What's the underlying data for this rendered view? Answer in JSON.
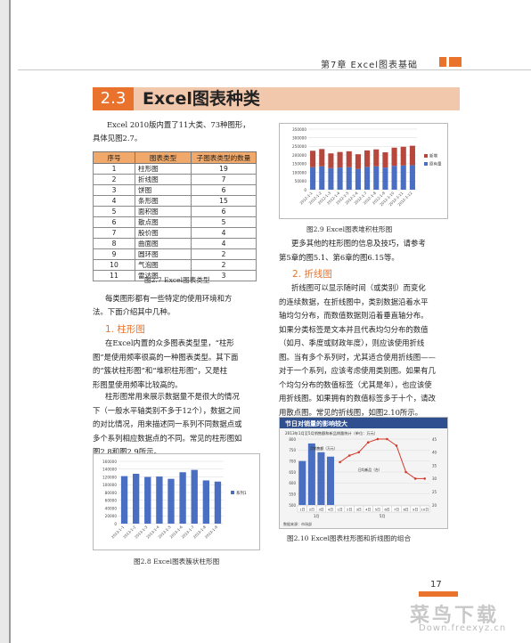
{
  "header": {
    "chapter": "第7章  Excel图表基础"
  },
  "section": {
    "number": "2.3",
    "title": "Excel图表种类"
  },
  "intro": {
    "line1": "Excel 2010版内置了11大类、73种图形，",
    "line2": "具体见图2.7。"
  },
  "types_table": {
    "headers": [
      "序号",
      "图表类型",
      "子图表类型的数量"
    ],
    "rows": [
      [
        "1",
        "柱形图",
        "19"
      ],
      [
        "2",
        "折线图",
        "7"
      ],
      [
        "3",
        "饼图",
        "6"
      ],
      [
        "4",
        "条形图",
        "15"
      ],
      [
        "5",
        "面积图",
        "6"
      ],
      [
        "6",
        "散点图",
        "5"
      ],
      [
        "7",
        "股价图",
        "4"
      ],
      [
        "8",
        "曲面图",
        "4"
      ],
      [
        "9",
        "圆环图",
        "2"
      ],
      [
        "10",
        "气泡图",
        "2"
      ],
      [
        "11",
        "雷达图",
        "3"
      ]
    ],
    "caption": "图2.7   Excel图表类型"
  },
  "left_text": {
    "p1_line1": "每类图形都有一些特定的使用环境和方",
    "p1_line2": "法。下面介绍其中几种。",
    "h_column": "1. 柱形图",
    "p2": [
      "在Excel内置的众多图表类型里，“柱形",
      "图”是使用频率很高的一种图表类型。其下面",
      "的“簇状柱形图”和“堆积柱形图”，又是柱",
      "形图里使用频率比较高的。"
    ],
    "p3": [
      "柱形图常用来展示数据量不是很大的情况",
      "下（一般水平轴类别不多于12个），数据之间",
      "的对比情况，用来描述同一系列不同数据点或",
      "多个系列相应数据点的不同。常见的柱形图如",
      "图2.8和图2.9所示。"
    ]
  },
  "right_text": {
    "p1": [
      "更多其他的柱形图的信息及技巧，请参考",
      "第5章的图5.1、第6章的图6.15等。"
    ],
    "h_line": "2. 折线图",
    "p2": [
      "折线图可以显示随时间（或类别）而变化",
      "的连续数据，在折线图中，类别数据沿着水平",
      "轴均匀分布，而数值数据则沿着垂直轴分布。",
      "如果分类标签是文本并且代表均匀分布的数值",
      "（如月、季度或财政年度），则应该使用折线",
      "图。当有多个系列时，尤其适合使用折线图——",
      "对于一个系列，应该考虑使用类别图。如果有几",
      "个均匀分布的数值标签（尤其是年），也应该使",
      "用折线图。如果拥有的数值标签多于十个，请改",
      "用散点图。常见的折线图，如图2.10所示。"
    ]
  },
  "captions": {
    "fig28": "图2.8   Excel图表簇状柱形图",
    "fig29": "图2.9   Excel图表堆积柱形图",
    "fig210": "图2.10   Excel图表柱形图和折线图的组合"
  },
  "page": {
    "number": "17"
  },
  "watermark": {
    "text": "菜鸟下载",
    "url": "Down.freexyz.cn"
  },
  "chart_data": [
    {
      "id": "fig2.8",
      "type": "bar",
      "categories": [
        "2013-1-1",
        "2013-1-2",
        "2013-1-3",
        "2013-1-4",
        "2013-1-5",
        "2013-1-6",
        "2013-1-7",
        "2013-1-8",
        "2013-1-9"
      ],
      "series": [
        {
          "name": "系列1",
          "values": [
            122000,
            128000,
            120000,
            121000,
            115000,
            132000,
            138000,
            111000,
            108000
          ]
        }
      ],
      "ylim": [
        0,
        160000
      ],
      "yticks": [
        "160000",
        "140000",
        "120000",
        "100000",
        "80000",
        "60000",
        "40000",
        "20000",
        "0"
      ],
      "legend": "right",
      "color": "#4a6fc2"
    },
    {
      "id": "fig2.9",
      "type": "bar",
      "stacked": true,
      "categories": [
        "2012-1-1",
        "2012-1-2",
        "2012-1-3",
        "2012-1-4",
        "2012-1-5",
        "2012-1-6",
        "2012-1-7",
        "2012-1-8",
        "2012-1-9",
        "2012-1-10",
        "2012-1-11",
        "2012-1-12"
      ],
      "series": [
        {
          "name": "新增",
          "values": [
            95000,
            100000,
            85000,
            90000,
            92000,
            85000,
            95000,
            98000,
            88000,
            105000,
            108000,
            112000
          ],
          "color": "#b5473c"
        },
        {
          "name": "原有量",
          "values": [
            130000,
            135000,
            125000,
            128000,
            130000,
            120000,
            132000,
            135000,
            128000,
            138000,
            140000,
            142000
          ],
          "color": "#4a6fc2"
        }
      ],
      "ylim": [
        0,
        350000
      ],
      "yticks": [
        "350000",
        "300000",
        "250000",
        "200000",
        "150000",
        "100000",
        "50000",
        "0"
      ],
      "legend": "right"
    },
    {
      "id": "fig2.10",
      "type": "bar",
      "title": "节日对销量的影响较大",
      "subtitle": "2013年1月至5月销售额和新品销量统计（单位：万元）",
      "categories": [
        "1日",
        "2日",
        "3日",
        "4日",
        "1日",
        "2日",
        "3日",
        "4日",
        "5日",
        "6日",
        "7日",
        "8日",
        "9日",
        "10日"
      ],
      "groups": [
        "1月",
        "5月"
      ],
      "series": [
        {
          "name": "月销售额（万元）",
          "type": "bar",
          "values": [
            700,
            780,
            740,
            720,
            null,
            null,
            null,
            null,
            null,
            null,
            null,
            null,
            null,
            null
          ],
          "color": "#4a6fc2"
        },
        {
          "name": "日均新品（台）",
          "type": "line",
          "values": [
            null,
            null,
            null,
            null,
            33,
            35,
            36,
            39,
            40,
            40,
            38,
            30,
            28,
            28
          ],
          "color": "#d33a2c"
        }
      ],
      "ylim": [
        500,
        800
      ],
      "ylim_right": [
        20,
        40
      ],
      "yticks_left": [
        "800",
        "750",
        "700",
        "650",
        "600",
        "550",
        "500"
      ],
      "yticks_right": [
        "45",
        "40",
        "35",
        "30",
        "25",
        "20"
      ],
      "annotations": [
        "月销售额（万元）",
        "日均新品（台）"
      ],
      "footer": "数据来源：市场部"
    }
  ]
}
